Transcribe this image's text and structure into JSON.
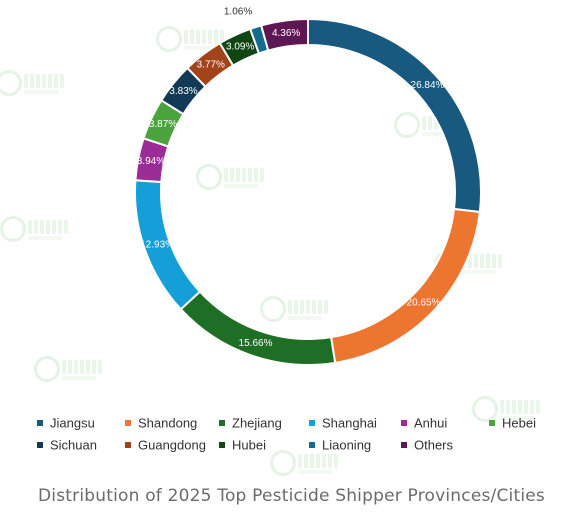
{
  "caption": "Distribution of 2025 Top Pesticide Shipper Provinces/Cities",
  "chart_data": {
    "type": "pie",
    "style": "donut",
    "legend_position": "bottom",
    "categories": [
      "Jiangsu",
      "Shandong",
      "Zhejiang",
      "Shanghai",
      "Anhui",
      "Hebei",
      "Sichuan",
      "Guangdong",
      "Hubei",
      "Liaoning",
      "Others"
    ],
    "values": [
      26.84,
      20.65,
      15.66,
      12.93,
      3.94,
      3.87,
      3.83,
      3.77,
      3.09,
      1.06,
      4.36
    ],
    "labels": [
      "26.84%",
      "20.65%",
      "15.66%",
      "12.93%",
      "3.94%",
      "3.87%",
      "3.83%",
      "3.77%",
      "3.09%",
      "1.06%",
      "4.36%"
    ],
    "colors": [
      "#17597f",
      "#ec7530",
      "#1f6e25",
      "#149fd8",
      "#9b2b96",
      "#4aa33c",
      "#123a56",
      "#a3431a",
      "#124514",
      "#136c90",
      "#5e1754"
    ]
  }
}
